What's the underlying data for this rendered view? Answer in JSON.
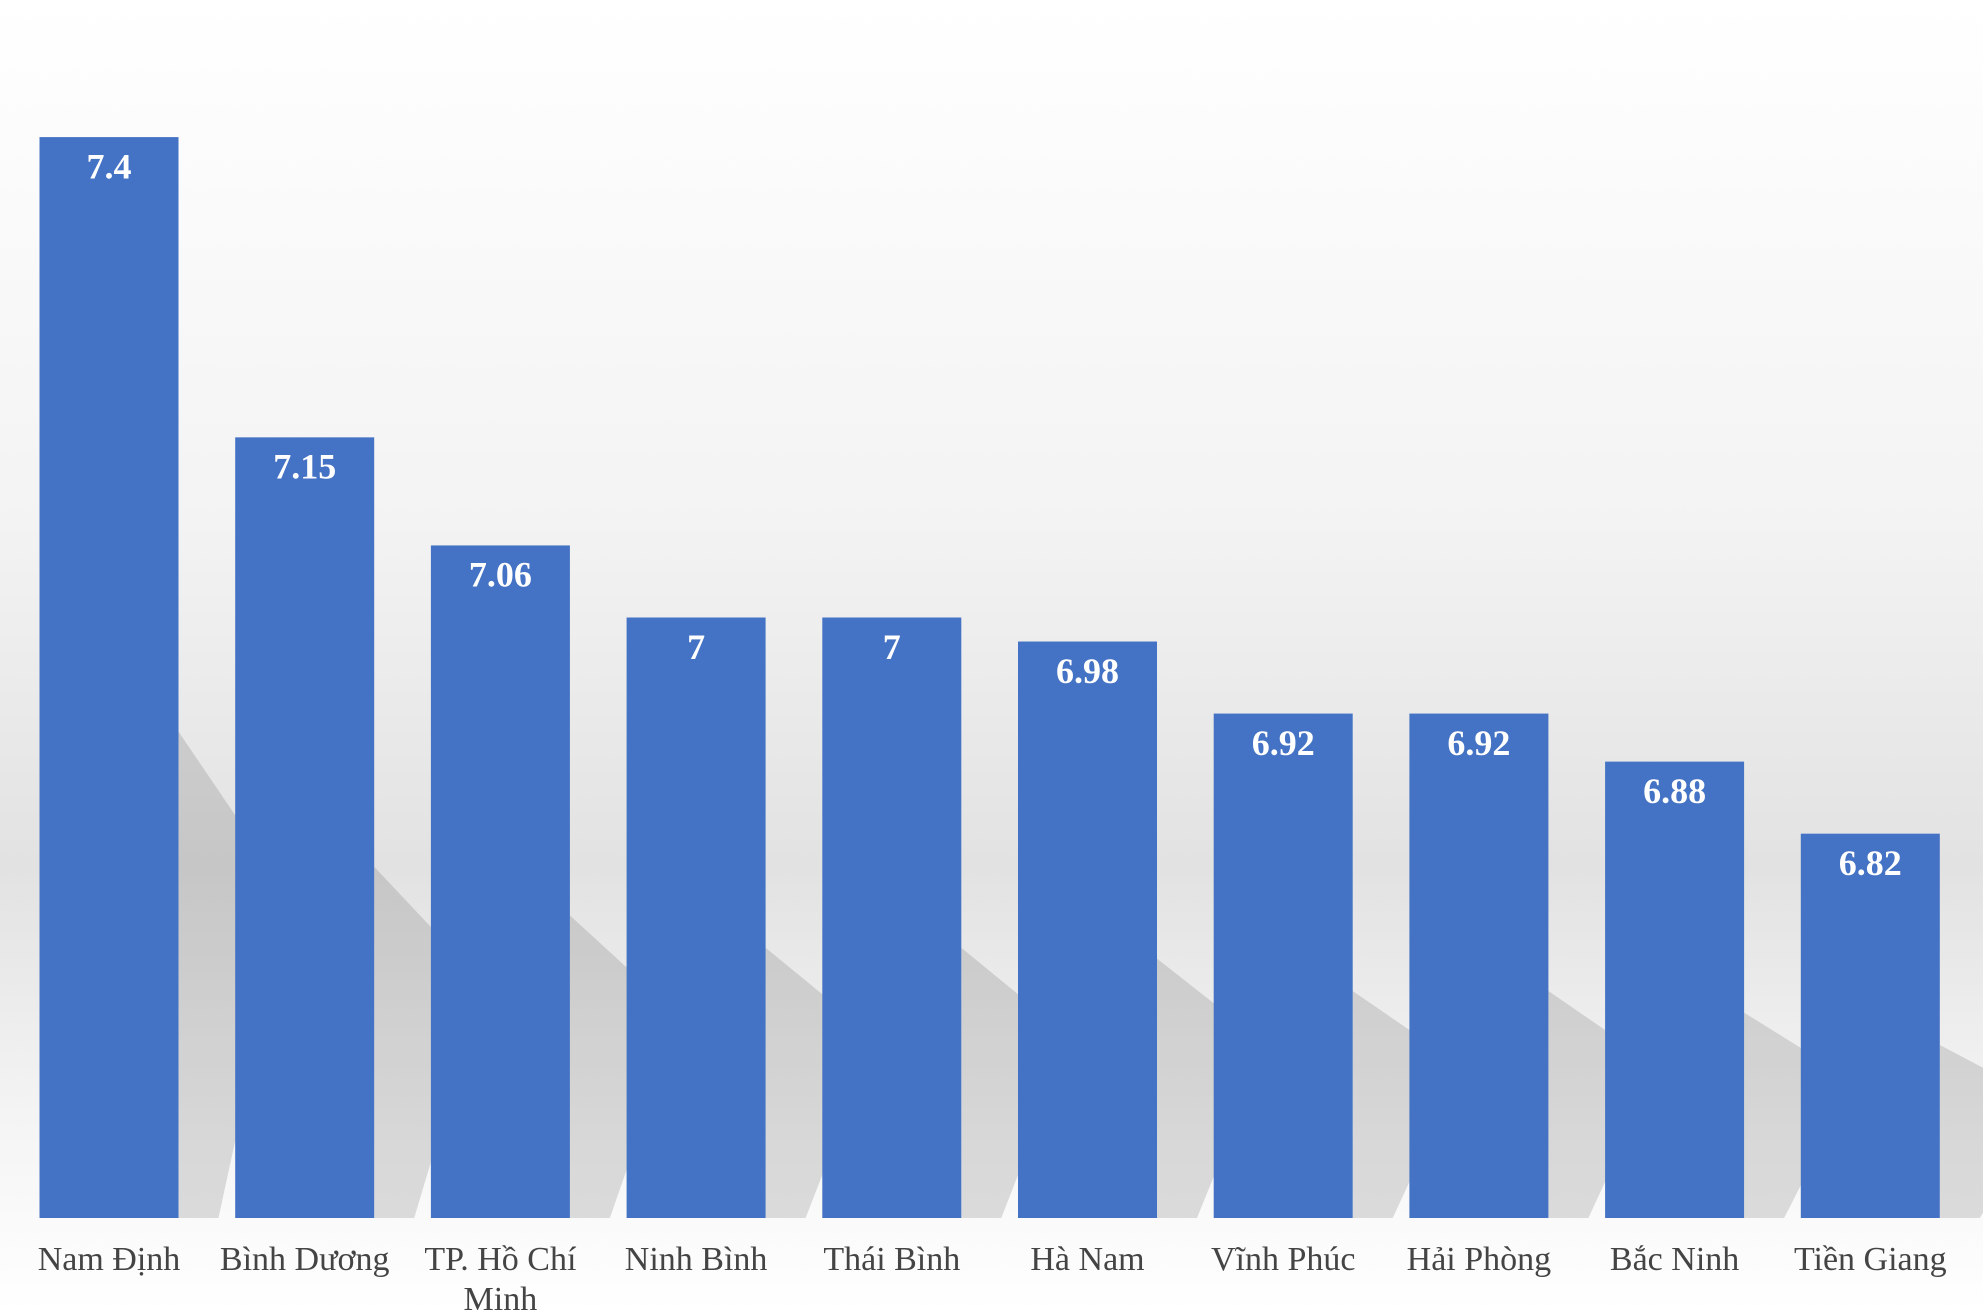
{
  "chart_data": {
    "type": "bar",
    "categories": [
      "Nam Định",
      "Bình Dương",
      "TP. Hồ Chí Minh",
      "Ninh Bình",
      "Thái Bình",
      "Hà Nam",
      "Vĩnh Phúc",
      "Hải Phòng",
      "Bắc Ninh",
      "Tiền Giang"
    ],
    "values": [
      7.4,
      7.15,
      7.06,
      7,
      7,
      6.98,
      6.92,
      6.92,
      6.88,
      6.82
    ],
    "color": "#4472c4",
    "ylim": [
      6.5,
      7.5
    ]
  }
}
